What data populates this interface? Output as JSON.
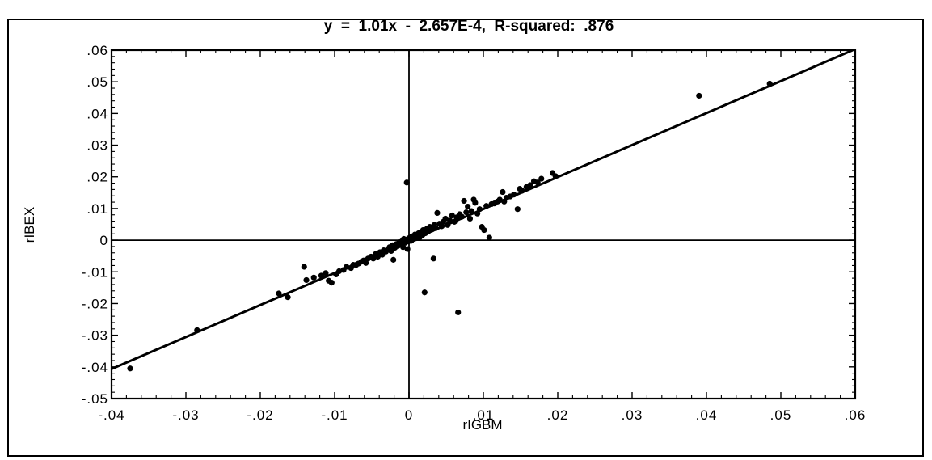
{
  "chart_data": {
    "type": "scatter",
    "title": "y  =  1.01x  -  2.657E-4,  R-squared:  .876",
    "xlabel": "rIGBM",
    "ylabel": "rIBEX",
    "xlim": [
      -0.04,
      0.06
    ],
    "ylim": [
      -0.05,
      0.06
    ],
    "x_ticks": [
      -0.04,
      -0.03,
      -0.02,
      -0.01,
      0,
      0.01,
      0.02,
      0.03,
      0.04,
      0.05,
      0.06
    ],
    "x_tick_labels": [
      "-.04",
      "-.03",
      "-.02",
      "-.01",
      "0",
      ".01",
      ".02",
      ".03",
      ".04",
      ".05",
      ".06"
    ],
    "y_ticks": [
      0.06,
      0.05,
      0.04,
      0.03,
      0.02,
      0.01,
      0,
      -0.01,
      -0.02,
      -0.03,
      -0.04,
      -0.05
    ],
    "y_tick_labels": [
      ".06",
      ".05",
      ".04",
      ".03",
      ".02",
      ".01",
      "0",
      "-.01",
      "-.02",
      "-.03",
      "-.04",
      "-.05"
    ],
    "regression": {
      "slope": 1.01,
      "intercept": -0.0002657,
      "r_squared": 0.876
    },
    "grid": false,
    "zero_lines": true,
    "series": [
      {
        "points": [
          [
            -0.0375,
            -0.0405
          ],
          [
            -0.0285,
            -0.0284
          ],
          [
            -0.0175,
            -0.0168
          ],
          [
            -0.0163,
            -0.018
          ],
          [
            -0.0141,
            -0.0084
          ],
          [
            -0.0138,
            -0.0126
          ],
          [
            -0.0128,
            -0.0118
          ],
          [
            -0.0118,
            -0.0112
          ],
          [
            -0.0112,
            -0.0104
          ],
          [
            -0.0108,
            -0.0128
          ],
          [
            -0.0104,
            -0.0134
          ],
          [
            -0.0098,
            -0.0108
          ],
          [
            -0.0094,
            -0.0098
          ],
          [
            -0.0088,
            -0.0094
          ],
          [
            -0.0084,
            -0.0084
          ],
          [
            -0.0078,
            -0.0088
          ],
          [
            -0.0075,
            -0.0078
          ],
          [
            -0.0071,
            -0.0078
          ],
          [
            -0.0068,
            -0.0074
          ],
          [
            -0.0064,
            -0.0068
          ],
          [
            -0.0061,
            -0.0064
          ],
          [
            -0.0058,
            -0.0072
          ],
          [
            -0.0055,
            -0.0058
          ],
          [
            -0.0051,
            -0.0052
          ],
          [
            -0.0048,
            -0.0058
          ],
          [
            -0.0045,
            -0.0044
          ],
          [
            -0.0042,
            -0.0052
          ],
          [
            -0.0039,
            -0.0038
          ],
          [
            -0.0036,
            -0.0046
          ],
          [
            -0.0034,
            -0.0032
          ],
          [
            -0.0031,
            -0.0036
          ],
          [
            -0.0028,
            -0.0028
          ],
          [
            -0.0026,
            -0.0022
          ],
          [
            -0.0024,
            -0.0034
          ],
          [
            -0.0022,
            -0.0016
          ],
          [
            -0.0021,
            -0.0062
          ],
          [
            -0.0019,
            -0.0024
          ],
          [
            -0.0017,
            -0.0012
          ],
          [
            -0.0015,
            -0.0018
          ],
          [
            -0.0013,
            -0.0006
          ],
          [
            -0.0011,
            -0.0014
          ],
          [
            -0.0009,
            -0.0002
          ],
          [
            -0.0008,
            -0.0022
          ],
          [
            -0.0007,
            0.0004
          ],
          [
            -0.0005,
            -0.0008
          ],
          [
            -0.0004,
            0.0002
          ],
          [
            -0.0003,
            0.0182
          ],
          [
            -0.0002,
            -0.0028
          ],
          [
            -0.0001,
            -0.0004
          ],
          [
            0.0001,
            0.0008
          ],
          [
            0.0003,
            -0.0002
          ],
          [
            0.0004,
            0.0012
          ],
          [
            0.0006,
            0.0004
          ],
          [
            0.0008,
            0.0018
          ],
          [
            0.0009,
            0.0006
          ],
          [
            0.0011,
            0.0014
          ],
          [
            0.0013,
            0.0022
          ],
          [
            0.0014,
            0.0008
          ],
          [
            0.0016,
            0.0026
          ],
          [
            0.0018,
            0.0016
          ],
          [
            0.0019,
            0.0032
          ],
          [
            0.0021,
            -0.0165
          ],
          [
            0.0022,
            0.0022
          ],
          [
            0.0024,
            0.0036
          ],
          [
            0.0026,
            0.0028
          ],
          [
            0.0028,
            0.0042
          ],
          [
            0.0031,
            0.0034
          ],
          [
            0.0033,
            -0.0058
          ],
          [
            0.0034,
            0.0048
          ],
          [
            0.0036,
            0.0038
          ],
          [
            0.0038,
            0.0086
          ],
          [
            0.0041,
            0.0052
          ],
          [
            0.0044,
            0.0044
          ],
          [
            0.0046,
            0.0058
          ],
          [
            0.0049,
            0.0068
          ],
          [
            0.0052,
            0.0048
          ],
          [
            0.0055,
            0.0062
          ],
          [
            0.0058,
            0.0078
          ],
          [
            0.0061,
            0.0058
          ],
          [
            0.0064,
            0.0072
          ],
          [
            0.0066,
            -0.0228
          ],
          [
            0.0068,
            0.0082
          ],
          [
            0.0071,
            0.0074
          ],
          [
            0.0074,
            0.0124
          ],
          [
            0.0077,
            0.0088
          ],
          [
            0.0079,
            0.0106
          ],
          [
            0.0082,
            0.0068
          ],
          [
            0.0084,
            0.0092
          ],
          [
            0.0087,
            0.0128
          ],
          [
            0.0089,
            0.0118
          ],
          [
            0.0092,
            0.0084
          ],
          [
            0.0095,
            0.0098
          ],
          [
            0.0098,
            0.0042
          ],
          [
            0.0101,
            0.0032
          ],
          [
            0.0104,
            0.0108
          ],
          [
            0.0108,
            0.0008
          ],
          [
            0.0111,
            0.0114
          ],
          [
            0.0115,
            0.0116
          ],
          [
            0.0119,
            0.0122
          ],
          [
            0.0122,
            0.0128
          ],
          [
            0.0126,
            0.0152
          ],
          [
            0.0128,
            0.0122
          ],
          [
            0.0131,
            0.0134
          ],
          [
            0.0136,
            0.0138
          ],
          [
            0.0141,
            0.0144
          ],
          [
            0.0146,
            0.0098
          ],
          [
            0.0149,
            0.0162
          ],
          [
            0.0152,
            0.0156
          ],
          [
            0.0158,
            0.0168
          ],
          [
            0.0163,
            0.0174
          ],
          [
            0.0168,
            0.0186
          ],
          [
            0.0173,
            0.0182
          ],
          [
            0.0178,
            0.0194
          ],
          [
            0.0193,
            0.0212
          ],
          [
            0.0197,
            0.0202
          ],
          [
            0.039,
            0.0456
          ],
          [
            0.0485,
            0.0494
          ]
        ]
      }
    ]
  }
}
